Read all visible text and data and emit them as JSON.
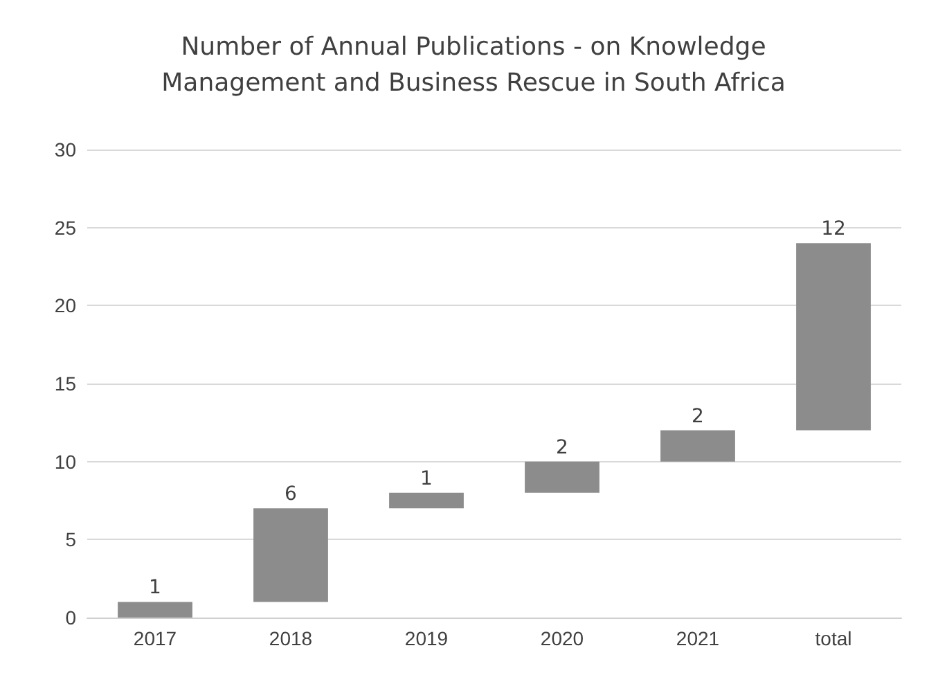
{
  "chart_data": {
    "type": "bar",
    "title": "Number of Annual Publications - on Knowledge\nManagement and Business Rescue in South Africa",
    "categories": [
      "2017",
      "2018",
      "2019",
      "2020",
      "2021",
      "total"
    ],
    "values": [
      1,
      6,
      1,
      2,
      2,
      12
    ],
    "base": [
      0,
      1,
      7,
      8,
      10,
      12
    ],
    "color": "#8c8c8c",
    "ylim": [
      0,
      30
    ],
    "yticks": [
      0,
      5,
      10,
      15,
      20,
      25,
      30
    ],
    "grid": "y",
    "data_labels": true
  }
}
